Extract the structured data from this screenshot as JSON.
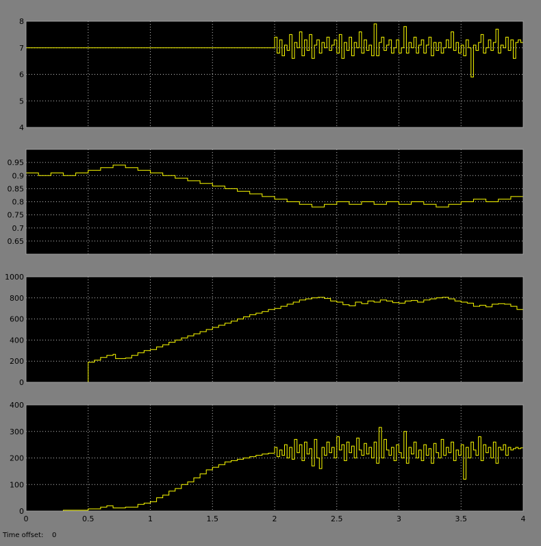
{
  "status": {
    "time_offset_label": "Time offset:",
    "time_offset_value": "0"
  },
  "colors": {
    "background": "#808080",
    "axes_background": "#000000",
    "trace": "#FFFF00",
    "grid": "#C8C8C8",
    "tick_text": "#000000"
  },
  "chart_data": [
    {
      "type": "line",
      "xlim": [
        0,
        4
      ],
      "ylim": [
        4,
        8
      ],
      "yticks": [
        "4",
        "5",
        "6",
        "7",
        "8"
      ],
      "xticks": [],
      "grid": true,
      "series": [
        {
          "x": [
            0,
            2.0,
            2.0,
            2.02,
            2.04,
            2.06,
            2.08,
            2.1,
            2.12,
            2.14,
            2.16,
            2.18,
            2.2,
            2.22,
            2.24,
            2.26,
            2.28,
            2.3,
            2.32,
            2.34,
            2.36,
            2.38,
            2.4,
            2.42,
            2.44,
            2.46,
            2.48,
            2.5,
            2.52,
            2.54,
            2.56,
            2.58,
            2.6,
            2.62,
            2.64,
            2.66,
            2.68,
            2.7,
            2.72,
            2.74,
            2.76,
            2.78,
            2.8,
            2.82,
            2.84,
            2.86,
            2.88,
            2.9,
            2.92,
            2.94,
            2.96,
            2.98,
            3.0,
            3.02,
            3.04,
            3.06,
            3.08,
            3.1,
            3.12,
            3.14,
            3.16,
            3.18,
            3.2,
            3.22,
            3.24,
            3.26,
            3.28,
            3.3,
            3.32,
            3.34,
            3.36,
            3.38,
            3.4,
            3.42,
            3.44,
            3.46,
            3.48,
            3.5,
            3.52,
            3.54,
            3.56,
            3.58,
            3.6,
            3.62,
            3.64,
            3.66,
            3.68,
            3.7,
            3.72,
            3.74,
            3.76,
            3.78,
            3.8,
            3.82,
            3.84,
            3.86,
            3.88,
            3.9,
            3.92,
            3.94,
            3.96,
            3.98,
            4.0
          ],
          "y": [
            7,
            7,
            7.4,
            6.8,
            7.3,
            6.7,
            7.1,
            6.9,
            7.5,
            6.6,
            7.2,
            7.0,
            7.6,
            6.7,
            7.3,
            6.9,
            7.5,
            6.6,
            7.1,
            7.3,
            6.8,
            7.2,
            7.0,
            7.4,
            6.9,
            7.1,
            7.3,
            6.8,
            7.5,
            6.6,
            7.2,
            6.9,
            7.4,
            6.7,
            7.2,
            7.0,
            7.6,
            6.8,
            7.3,
            6.9,
            7.1,
            6.7,
            7.9,
            6.7,
            7.2,
            7.4,
            6.9,
            7.1,
            7.3,
            6.8,
            7.0,
            7.3,
            6.8,
            7.0,
            7.8,
            6.8,
            7.2,
            7.0,
            7.4,
            6.8,
            7.1,
            7.3,
            6.8,
            7.1,
            7.4,
            6.7,
            7.2,
            6.9,
            7.2,
            6.8,
            7.0,
            7.3,
            7.0,
            7.6,
            6.9,
            7.2,
            6.8,
            7.1,
            6.7,
            7.3,
            7.0,
            5.9,
            7.1,
            6.9,
            7.2,
            7.5,
            6.8,
            7.0,
            7.3,
            6.9,
            7.2,
            7.7,
            6.8,
            7.1,
            7.0,
            7.4,
            6.9,
            7.3,
            6.6,
            7.2,
            7.3,
            7.2,
            7.2
          ]
        }
      ]
    },
    {
      "type": "line",
      "xlim": [
        0,
        4
      ],
      "ylim": [
        0.6,
        1.0
      ],
      "yticks": [
        "0.65",
        "0.7",
        "0.75",
        "0.8",
        "0.85",
        "0.9",
        "0.95"
      ],
      "xticks": [],
      "grid": true,
      "series": [
        {
          "x": [
            0,
            0.1,
            0.1,
            0.2,
            0.2,
            0.3,
            0.3,
            0.4,
            0.4,
            0.5,
            0.5,
            0.6,
            0.6,
            0.7,
            0.7,
            0.8,
            0.8,
            0.9,
            0.9,
            1.0,
            1.0,
            1.1,
            1.1,
            1.2,
            1.2,
            1.3,
            1.3,
            1.4,
            1.4,
            1.5,
            1.5,
            1.6,
            1.6,
            1.7,
            1.7,
            1.8,
            1.8,
            1.9,
            1.9,
            2.0,
            2.0,
            2.1,
            2.1,
            2.2,
            2.2,
            2.3,
            2.3,
            2.4,
            2.4,
            2.5,
            2.5,
            2.6,
            2.6,
            2.7,
            2.7,
            2.8,
            2.8,
            2.9,
            2.9,
            3.0,
            3.0,
            3.1,
            3.1,
            3.2,
            3.2,
            3.3,
            3.3,
            3.4,
            3.4,
            3.5,
            3.5,
            3.6,
            3.6,
            3.7,
            3.7,
            3.8,
            3.8,
            3.9,
            3.9,
            4.0
          ],
          "y": [
            0.91,
            0.91,
            0.9,
            0.9,
            0.91,
            0.91,
            0.9,
            0.9,
            0.91,
            0.91,
            0.92,
            0.92,
            0.93,
            0.93,
            0.94,
            0.94,
            0.93,
            0.93,
            0.92,
            0.92,
            0.91,
            0.91,
            0.9,
            0.9,
            0.89,
            0.89,
            0.88,
            0.88,
            0.87,
            0.87,
            0.86,
            0.86,
            0.85,
            0.85,
            0.84,
            0.84,
            0.83,
            0.83,
            0.82,
            0.82,
            0.81,
            0.81,
            0.8,
            0.8,
            0.79,
            0.79,
            0.78,
            0.78,
            0.79,
            0.79,
            0.8,
            0.8,
            0.79,
            0.79,
            0.8,
            0.8,
            0.79,
            0.79,
            0.8,
            0.8,
            0.79,
            0.79,
            0.8,
            0.8,
            0.79,
            0.79,
            0.78,
            0.78,
            0.79,
            0.79,
            0.8,
            0.8,
            0.81,
            0.81,
            0.8,
            0.8,
            0.81,
            0.81,
            0.82,
            0.82
          ]
        }
      ]
    },
    {
      "type": "line",
      "xlim": [
        0,
        4
      ],
      "ylim": [
        0,
        1000
      ],
      "yticks": [
        "0",
        "200",
        "400",
        "600",
        "800",
        "1000"
      ],
      "xticks": [],
      "grid": true,
      "series": [
        {
          "x": [
            0,
            0.5,
            0.55,
            0.6,
            0.65,
            0.7,
            0.72,
            0.8,
            0.85,
            0.9,
            0.95,
            1.0,
            1.05,
            1.1,
            1.15,
            1.2,
            1.25,
            1.3,
            1.35,
            1.4,
            1.45,
            1.5,
            1.55,
            1.6,
            1.65,
            1.7,
            1.75,
            1.8,
            1.85,
            1.9,
            1.95,
            2.0,
            2.05,
            2.1,
            2.15,
            2.2,
            2.25,
            2.3,
            2.35,
            2.4,
            2.45,
            2.5,
            2.55,
            2.6,
            2.65,
            2.7,
            2.75,
            2.8,
            2.85,
            2.9,
            2.95,
            3.0,
            3.05,
            3.1,
            3.15,
            3.2,
            3.25,
            3.3,
            3.35,
            3.4,
            3.45,
            3.5,
            3.55,
            3.6,
            3.65,
            3.7,
            3.75,
            3.8,
            3.85,
            3.9,
            3.95,
            4.0
          ],
          "y": [
            0,
            190,
            210,
            235,
            255,
            265,
            225,
            230,
            255,
            280,
            300,
            310,
            335,
            355,
            380,
            400,
            420,
            440,
            460,
            480,
            500,
            520,
            540,
            560,
            580,
            600,
            620,
            640,
            655,
            670,
            690,
            700,
            720,
            740,
            760,
            780,
            790,
            800,
            805,
            795,
            770,
            760,
            735,
            725,
            760,
            745,
            770,
            760,
            780,
            770,
            755,
            750,
            770,
            775,
            760,
            780,
            790,
            800,
            805,
            790,
            770,
            760,
            750,
            720,
            730,
            715,
            740,
            745,
            740,
            720,
            690,
            680
          ]
        }
      ]
    },
    {
      "type": "line",
      "xlim": [
        0,
        4
      ],
      "ylim": [
        0,
        400
      ],
      "yticks": [
        "0",
        "100",
        "200",
        "300",
        "400"
      ],
      "xticks": [
        "0",
        "0.5",
        "1",
        "1.5",
        "2",
        "2.5",
        "3",
        "3.5",
        "4"
      ],
      "grid": true,
      "series": [
        {
          "x": [
            0,
            0.3,
            0.5,
            0.6,
            0.65,
            0.7,
            0.8,
            0.9,
            0.95,
            1.0,
            1.05,
            1.1,
            1.15,
            1.2,
            1.25,
            1.3,
            1.35,
            1.4,
            1.45,
            1.5,
            1.55,
            1.6,
            1.65,
            1.7,
            1.75,
            1.8,
            1.85,
            1.9,
            1.95,
            2.0,
            2.0,
            2.02,
            2.04,
            2.06,
            2.08,
            2.1,
            2.12,
            2.14,
            2.16,
            2.18,
            2.2,
            2.22,
            2.24,
            2.26,
            2.28,
            2.3,
            2.32,
            2.34,
            2.36,
            2.38,
            2.4,
            2.42,
            2.44,
            2.46,
            2.48,
            2.5,
            2.52,
            2.54,
            2.56,
            2.58,
            2.6,
            2.62,
            2.64,
            2.66,
            2.68,
            2.7,
            2.72,
            2.74,
            2.76,
            2.78,
            2.8,
            2.82,
            2.84,
            2.86,
            2.88,
            2.9,
            2.92,
            2.94,
            2.96,
            2.98,
            3.0,
            3.02,
            3.04,
            3.06,
            3.08,
            3.1,
            3.12,
            3.14,
            3.16,
            3.18,
            3.2,
            3.22,
            3.24,
            3.26,
            3.28,
            3.3,
            3.32,
            3.34,
            3.36,
            3.38,
            3.4,
            3.42,
            3.44,
            3.46,
            3.48,
            3.5,
            3.52,
            3.54,
            3.56,
            3.58,
            3.6,
            3.62,
            3.64,
            3.66,
            3.68,
            3.7,
            3.72,
            3.74,
            3.76,
            3.78,
            3.8,
            3.82,
            3.84,
            3.86,
            3.88,
            3.9,
            3.92,
            3.94,
            3.96,
            3.98,
            4.0
          ],
          "y": [
            0,
            3,
            8,
            15,
            20,
            12,
            15,
            25,
            30,
            35,
            50,
            60,
            75,
            85,
            100,
            110,
            125,
            140,
            155,
            165,
            175,
            185,
            190,
            195,
            200,
            205,
            210,
            215,
            218,
            220,
            240,
            205,
            230,
            210,
            250,
            200,
            240,
            195,
            270,
            220,
            250,
            190,
            260,
            215,
            235,
            170,
            270,
            200,
            160,
            240,
            210,
            260,
            220,
            240,
            200,
            280,
            230,
            250,
            190,
            260,
            220,
            245,
            200,
            275,
            230,
            210,
            255,
            215,
            240,
            200,
            260,
            180,
            315,
            200,
            270,
            230,
            210,
            240,
            190,
            250,
            220,
            200,
            300,
            180,
            240,
            215,
            260,
            200,
            230,
            190,
            250,
            210,
            235,
            180,
            255,
            220,
            200,
            270,
            210,
            240,
            220,
            260,
            190,
            230,
            210,
            250,
            120,
            240,
            200,
            260,
            230,
            210,
            280,
            190,
            250,
            220,
            240,
            200,
            260,
            180,
            240,
            230,
            250,
            210,
            240,
            230,
            235,
            240,
            235,
            238,
            235
          ]
        }
      ]
    }
  ]
}
